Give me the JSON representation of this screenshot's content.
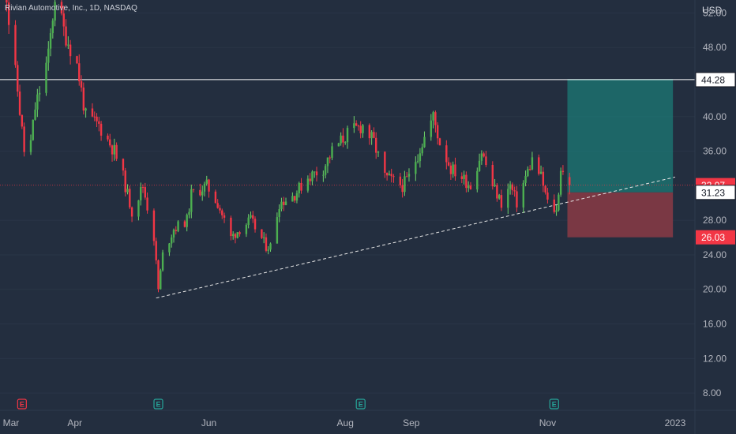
{
  "header": {
    "symbol_title": "Rivian Automotive, Inc., 1D, NASDAQ"
  },
  "chart_data": {
    "type": "candlestick",
    "currency": "USD",
    "y_ticks": [
      "52.00",
      "48.00",
      "40.00",
      "36.00",
      "28.00",
      "24.00",
      "20.00",
      "16.00",
      "12.00",
      "8.00"
    ],
    "x_ticks": [
      "Mar",
      "Apr",
      "Jun",
      "Aug",
      "Sep",
      "Nov",
      "2023"
    ],
    "ylim": [
      6,
      53.5
    ],
    "x_domain": [
      "2022-02-28",
      "2023-01-10"
    ],
    "price_labels": [
      {
        "value": 44.28,
        "text": "44.28",
        "style": "white"
      },
      {
        "value": 32.07,
        "text": "32.07",
        "style": "red"
      },
      {
        "value": 31.23,
        "text": "31.23",
        "style": "white"
      },
      {
        "value": 26.03,
        "text": "26.03",
        "style": "red"
      }
    ],
    "horizontal_line": 44.28,
    "current_price_line": 32.07,
    "trendline": {
      "start": {
        "date": "2022-05-10",
        "price": 19.0
      },
      "end": {
        "date": "2023-01-01",
        "price": 33.0
      }
    },
    "long_position": {
      "entry": 31.23,
      "target": 44.28,
      "stop": 26.03,
      "start": "2022-11-13",
      "end": "2022-12-31"
    },
    "earnings_markers": [
      {
        "date": "2022-03-10",
        "label": "E",
        "color": "#f23645"
      },
      {
        "date": "2022-05-11",
        "label": "E",
        "color": "#26a69a"
      },
      {
        "date": "2022-08-11",
        "label": "E",
        "color": "#26a69a"
      },
      {
        "date": "2022-11-07",
        "label": "E",
        "color": "#26a69a"
      }
    ],
    "anchors": [
      {
        "date": "2022-03-01",
        "price": 60
      },
      {
        "date": "2022-03-04",
        "price": 51
      },
      {
        "date": "2022-03-08",
        "price": 43
      },
      {
        "date": "2022-03-11",
        "price": 36
      },
      {
        "date": "2022-03-14",
        "price": 37
      },
      {
        "date": "2022-03-16",
        "price": 41
      },
      {
        "date": "2022-03-22",
        "price": 47
      },
      {
        "date": "2022-03-25",
        "price": 54
      },
      {
        "date": "2022-03-29",
        "price": 50
      },
      {
        "date": "2022-04-04",
        "price": 46
      },
      {
        "date": "2022-04-08",
        "price": 40
      },
      {
        "date": "2022-04-14",
        "price": 39
      },
      {
        "date": "2022-04-21",
        "price": 36
      },
      {
        "date": "2022-04-25",
        "price": 33
      },
      {
        "date": "2022-04-29",
        "price": 29
      },
      {
        "date": "2022-05-04",
        "price": 32
      },
      {
        "date": "2022-05-09",
        "price": 26
      },
      {
        "date": "2022-05-11",
        "price": 20
      },
      {
        "date": "2022-05-13",
        "price": 24
      },
      {
        "date": "2022-05-18",
        "price": 27
      },
      {
        "date": "2022-05-24",
        "price": 28
      },
      {
        "date": "2022-05-26",
        "price": 31
      },
      {
        "date": "2022-06-02",
        "price": 32
      },
      {
        "date": "2022-06-07",
        "price": 30
      },
      {
        "date": "2022-06-13",
        "price": 26
      },
      {
        "date": "2022-06-17",
        "price": 27
      },
      {
        "date": "2022-06-22",
        "price": 28
      },
      {
        "date": "2022-06-29",
        "price": 25
      },
      {
        "date": "2022-07-01",
        "price": 25
      },
      {
        "date": "2022-07-05",
        "price": 30
      },
      {
        "date": "2022-07-12",
        "price": 31
      },
      {
        "date": "2022-07-18",
        "price": 33
      },
      {
        "date": "2022-07-25",
        "price": 34
      },
      {
        "date": "2022-07-29",
        "price": 36
      },
      {
        "date": "2022-08-05",
        "price": 38
      },
      {
        "date": "2022-08-12",
        "price": 39
      },
      {
        "date": "2022-08-17",
        "price": 37
      },
      {
        "date": "2022-08-22",
        "price": 33
      },
      {
        "date": "2022-08-30",
        "price": 32
      },
      {
        "date": "2022-09-02",
        "price": 33
      },
      {
        "date": "2022-09-08",
        "price": 37
      },
      {
        "date": "2022-09-13",
        "price": 40
      },
      {
        "date": "2022-09-16",
        "price": 37
      },
      {
        "date": "2022-09-21",
        "price": 34
      },
      {
        "date": "2022-09-26",
        "price": 33
      },
      {
        "date": "2022-09-30",
        "price": 32
      },
      {
        "date": "2022-10-05",
        "price": 36
      },
      {
        "date": "2022-10-10",
        "price": 32
      },
      {
        "date": "2022-10-14",
        "price": 30
      },
      {
        "date": "2022-10-18",
        "price": 32
      },
      {
        "date": "2022-10-21",
        "price": 30
      },
      {
        "date": "2022-10-25",
        "price": 33
      },
      {
        "date": "2022-10-28",
        "price": 35
      },
      {
        "date": "2022-11-01",
        "price": 33
      },
      {
        "date": "2022-11-04",
        "price": 30
      },
      {
        "date": "2022-11-08",
        "price": 29
      },
      {
        "date": "2022-11-10",
        "price": 34
      },
      {
        "date": "2022-11-14",
        "price": 32.07
      }
    ],
    "seed": 11,
    "up_color": "#26a69a",
    "down_color": "#f23645",
    "wick_up_color": "#6fd36a",
    "body_up_color": "#4caf50"
  }
}
